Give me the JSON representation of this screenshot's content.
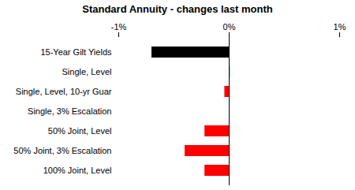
{
  "chart_data": {
    "type": "bar",
    "orientation": "horizontal",
    "title": "Standard Annuity - changes last month",
    "categories": [
      "15-Year Gilt Yields",
      "Single, Level",
      "Single, Level, 10-yr Guar",
      "Single, 3% Escalation",
      "50% Joint, Level",
      "50% Joint, 3% Escalation",
      "100% Joint, Level"
    ],
    "values": [
      -0.7,
      0.01,
      -0.04,
      0,
      -0.22,
      -0.4,
      -0.22
    ],
    "colors": [
      "#000000",
      "#00b050",
      "#ff0000",
      "#ff0000",
      "#ff0000",
      "#ff0000",
      "#ff0000"
    ],
    "xlim": [
      -1,
      1
    ],
    "xticks": [
      {
        "value": -1,
        "label": "-1%"
      },
      {
        "value": 0,
        "label": "0%"
      },
      {
        "value": 1,
        "label": "1%"
      }
    ]
  }
}
